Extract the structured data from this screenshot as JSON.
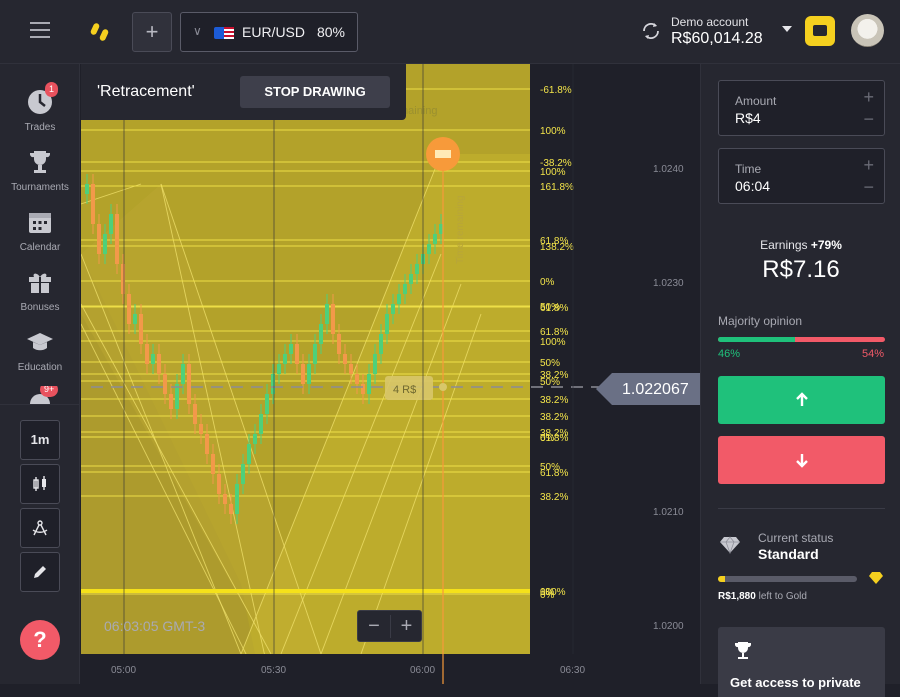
{
  "header": {
    "pair_name": "EUR/USD",
    "pair_payout": "80%",
    "account_label": "Demo account",
    "account_balance": "R$60,014.28"
  },
  "sidebar": {
    "items": [
      {
        "label": "Trades",
        "badge": "1"
      },
      {
        "label": "Tournaments"
      },
      {
        "label": "Calendar"
      },
      {
        "label": "Bonuses"
      },
      {
        "label": "Education"
      }
    ],
    "more_badge": "9+",
    "timeframe": "1m"
  },
  "drawing": {
    "tool_name": "'Retracement'",
    "stop_label": "STOP DRAWING"
  },
  "chart": {
    "current_price": "1.022067",
    "current_time": "06:03:05 GMT-3",
    "trade_marker": "4 R$",
    "faded_text": "maining",
    "time_remaining": "Time remaining",
    "y_ticks": [
      "1.0240",
      "1.0230",
      "1.0210",
      "1.0200"
    ],
    "x_ticks": [
      "05:00",
      "05:30",
      "06:00",
      "06:30"
    ],
    "fib_labels": [
      {
        "text": "-61.8%",
        "y": 25
      },
      {
        "text": "100%",
        "y": 66
      },
      {
        "text": "-38.2%",
        "y": 98
      },
      {
        "text": "100%",
        "y": 107
      },
      {
        "text": "161.8%",
        "y": 122
      },
      {
        "text": "61.8%",
        "y": 176
      },
      {
        "text": "138.2%",
        "y": 182
      },
      {
        "text": "0%",
        "y": 217
      },
      {
        "text": "50%",
        "y": 242
      },
      {
        "text": "61.8%",
        "y": 243
      },
      {
        "text": "61.8%",
        "y": 267
      },
      {
        "text": "100%",
        "y": 277
      },
      {
        "text": "50%",
        "y": 298
      },
      {
        "text": "38.2%",
        "y": 310
      },
      {
        "text": "50%",
        "y": 317
      },
      {
        "text": "38.2%",
        "y": 335
      },
      {
        "text": "38.2%",
        "y": 352
      },
      {
        "text": "38.2%",
        "y": 368
      },
      {
        "text": "61.8%",
        "y": 373
      },
      {
        "text": "0%",
        "y": 373
      },
      {
        "text": "50%",
        "y": 402
      },
      {
        "text": "61.8%",
        "y": 408
      },
      {
        "text": "38.2%",
        "y": 432
      },
      {
        "text": "0%",
        "y": 527
      },
      {
        "text": "0%",
        "y": 530
      },
      {
        "text": "100%",
        "y": 527
      }
    ]
  },
  "trade_panel": {
    "amount_label": "Amount",
    "amount_value": "R$4",
    "time_label": "Time",
    "time_value": "06:04",
    "earnings_label": "Earnings",
    "earnings_pct": "+79%",
    "earnings_value": "R$7.16",
    "majority_label": "Majority opinion",
    "majority_up": "46%",
    "majority_down": "54%",
    "majority_up_fraction": 0.46,
    "status_label": "Current status",
    "status_value": "Standard",
    "gold_progress_fraction": 0.05,
    "gold_amount": "R$1,880",
    "gold_text": " left to Gold",
    "promo_text": "Get access to private"
  },
  "colors": {
    "accent_yellow": "#f5d01f",
    "up_green": "#1fc17b",
    "down_red": "#f25a68",
    "background": "#1f2029"
  }
}
